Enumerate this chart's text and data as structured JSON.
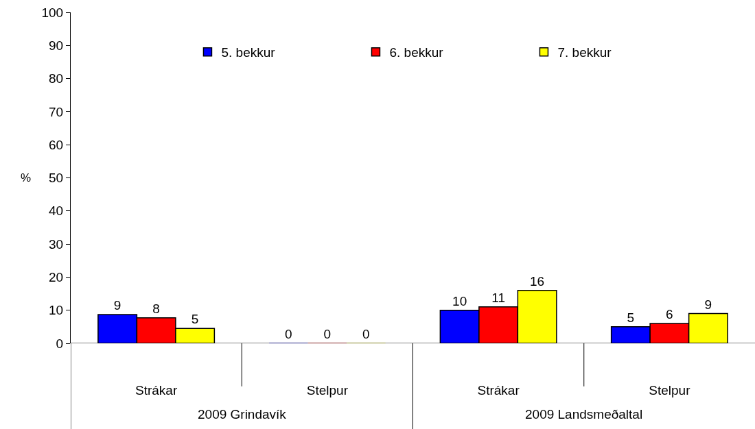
{
  "chart_data": {
    "type": "bar",
    "ylabel": "%",
    "categories": [
      "Strákar",
      "Stelpur",
      "Strákar",
      "Stelpur"
    ],
    "annotations": [
      "2009 Grindavík",
      "2009 Landsmeðaltal"
    ],
    "series": [
      {
        "name": "5. bekkur",
        "color": "#0000ff",
        "values": [
          8.7,
          0,
          10,
          5
        ],
        "value_labels": [
          "9",
          "0",
          "10",
          "5"
        ]
      },
      {
        "name": "6. bekkur",
        "color": "#ff0000",
        "values": [
          7.7,
          0,
          11,
          6
        ],
        "value_labels": [
          "8",
          "0",
          "11",
          "6"
        ]
      },
      {
        "name": "7. bekkur",
        "color": "#ffff00",
        "values": [
          4.5,
          0,
          16,
          9
        ],
        "value_labels": [
          "5",
          "0",
          "16",
          "9"
        ]
      }
    ],
    "ylim": [
      0,
      100
    ],
    "yticks": [
      0,
      10,
      20,
      30,
      40,
      50,
      60,
      70,
      80,
      90,
      100
    ],
    "grid": false,
    "legend": "top"
  }
}
